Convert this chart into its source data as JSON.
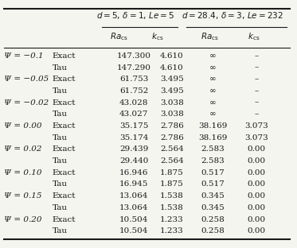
{
  "col_headers_top": [
    "",
    "",
    "d = 5, δ = 1, Le = 5",
    "",
    "d = 28.4, δ = 3, Le = 232",
    ""
  ],
  "col_headers_sub": [
    "",
    "",
    "Ra_cs",
    "k_cs",
    "Ra_cs",
    "k_cs"
  ],
  "rows": [
    [
      "Ψ = −0.1",
      "Exact",
      "147.300",
      "4.610",
      "∞",
      "–"
    ],
    [
      "",
      "Tau",
      "147.290",
      "4.610",
      "∞",
      "–"
    ],
    [
      "Ψ = −0.05",
      "Exact",
      "61.753",
      "3.495",
      "∞",
      "–"
    ],
    [
      "",
      "Tau",
      "61.752",
      "3.495",
      "∞",
      "–"
    ],
    [
      "Ψ = −0.02",
      "Exact",
      "43.028",
      "3.038",
      "∞",
      "–"
    ],
    [
      "",
      "Tau",
      "43.027",
      "3.038",
      "∞",
      "–"
    ],
    [
      "Ψ = 0.00",
      "Exact",
      "35.175",
      "2.786",
      "38.169",
      "3.073"
    ],
    [
      "",
      "Tau",
      "35.174",
      "2.786",
      "38.169",
      "3.073"
    ],
    [
      "Ψ = 0.02",
      "Exact",
      "29.439",
      "2.564",
      "2.583",
      "0.00"
    ],
    [
      "",
      "Tau",
      "29.440",
      "2.564",
      "2.583",
      "0.00"
    ],
    [
      "Ψ = 0.10",
      "Exact",
      "16.946",
      "1.875",
      "0.517",
      "0.00"
    ],
    [
      "",
      "Tau",
      "16.945",
      "1.875",
      "0.517",
      "0.00"
    ],
    [
      "Ψ = 0.15",
      "Exact",
      "13.064",
      "1.538",
      "0.345",
      "0.00"
    ],
    [
      "",
      "Tau",
      "13.064",
      "1.538",
      "0.345",
      "0.00"
    ],
    [
      "Ψ = 0.20",
      "Exact",
      "10.504",
      "1.233",
      "0.258",
      "0.00"
    ],
    [
      "",
      "Tau",
      "10.504",
      "1.233",
      "0.258",
      "0.00"
    ]
  ],
  "background_color": "#f5f5f0",
  "text_color": "#1a1a1a",
  "font_size": 7.5
}
